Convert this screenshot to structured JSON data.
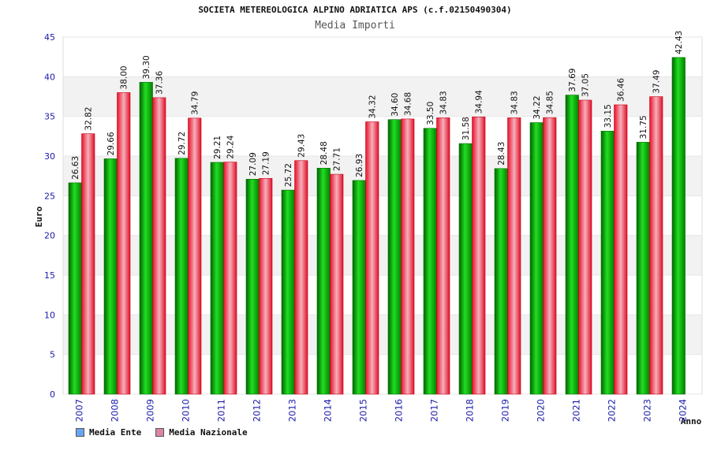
{
  "header": {
    "title": "SOCIETA METEREOLOGICA ALPINO ADRIATICA APS (c.f.02150490304)",
    "subtitle": "Media Importi"
  },
  "legend": {
    "series1": "Media Ente",
    "series2": "Media Nazionale",
    "series1_swatch": "#6aa5f0",
    "series2_swatch": "#d984a8"
  },
  "colors": {
    "green": "#00b000",
    "red": "#ee2b3b",
    "axis_text": "#1a1aa8",
    "grid": "#e6e6e6",
    "band": "#f2f2f2"
  },
  "chart_data": {
    "type": "bar",
    "xlabel": "Anno",
    "ylabel": "Euro",
    "ylim": [
      0,
      45
    ],
    "yticks": [
      0,
      5,
      10,
      15,
      20,
      25,
      30,
      35,
      40,
      45
    ],
    "categories": [
      "2007",
      "2008",
      "2009",
      "2010",
      "2011",
      "2012",
      "2013",
      "2014",
      "2015",
      "2016",
      "2017",
      "2018",
      "2019",
      "2020",
      "2021",
      "2022",
      "2023",
      "2024"
    ],
    "series": [
      {
        "name": "Media Ente",
        "values": [
          26.63,
          29.66,
          39.3,
          29.72,
          29.21,
          27.09,
          25.72,
          28.48,
          26.93,
          34.6,
          33.5,
          31.58,
          28.43,
          34.22,
          37.69,
          33.15,
          31.75,
          42.43
        ]
      },
      {
        "name": "Media Nazionale",
        "values": [
          32.82,
          38.0,
          37.36,
          34.79,
          29.24,
          27.19,
          29.43,
          27.71,
          34.32,
          34.68,
          34.83,
          34.94,
          34.83,
          34.85,
          37.05,
          36.46,
          37.49,
          null
        ]
      }
    ],
    "grid": true,
    "legend_position": "bottom-left"
  }
}
